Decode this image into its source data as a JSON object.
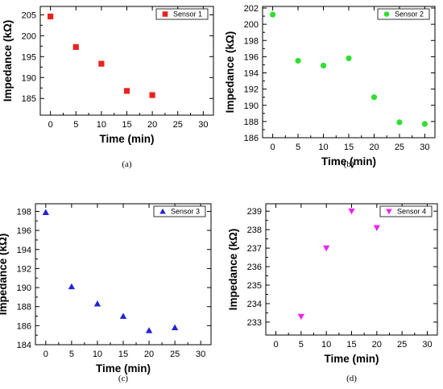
{
  "chart_data": [
    {
      "type": "scatter",
      "caption": "(a)",
      "xlabel": "Time (min)",
      "ylabel": "Impedance (kΩ)",
      "xlim": [
        -2,
        32
      ],
      "ylim": [
        181,
        207
      ],
      "xticks": [
        0,
        5,
        10,
        15,
        20,
        25,
        30
      ],
      "yticks": [
        185,
        190,
        195,
        200,
        205
      ],
      "grid": false,
      "legend": "top-right",
      "series": [
        {
          "name": "Sensor 1",
          "marker": "square",
          "color": "#e8231f",
          "x": [
            0,
            5,
            10,
            15,
            20
          ],
          "y": [
            204.6,
            197.3,
            193.3,
            186.8,
            185.8
          ]
        }
      ]
    },
    {
      "type": "scatter",
      "caption": "(b)",
      "xlabel": "Time (min)",
      "ylabel": "Impedance (kΩ)",
      "xlim": [
        -2,
        32
      ],
      "ylim": [
        186,
        202.2
      ],
      "xticks": [
        0,
        5,
        10,
        15,
        20,
        25,
        30
      ],
      "yticks": [
        186,
        188,
        190,
        192,
        194,
        196,
        198,
        200,
        202
      ],
      "grid": false,
      "legend": "top-right",
      "series": [
        {
          "name": "Sensor 2",
          "marker": "circle",
          "color": "#2fe02f",
          "x": [
            0,
            5,
            10,
            15,
            20,
            25,
            30
          ],
          "y": [
            201.2,
            195.5,
            194.9,
            195.8,
            191.0,
            187.9,
            187.7
          ]
        }
      ]
    },
    {
      "type": "scatter",
      "caption": "(c)",
      "xlabel": "Time (min)",
      "ylabel": "Impedance (kΩ)",
      "xlim": [
        -2,
        32
      ],
      "ylim": [
        184,
        198.8
      ],
      "xticks": [
        0,
        5,
        10,
        15,
        20,
        25,
        30
      ],
      "yticks": [
        184,
        186,
        188,
        190,
        192,
        194,
        196,
        198
      ],
      "grid": false,
      "legend": "top-right",
      "series": [
        {
          "name": "Sensor 3",
          "marker": "triangle-up",
          "color": "#1f23d8",
          "x": [
            0,
            5,
            10,
            15,
            20,
            25
          ],
          "y": [
            197.9,
            190.1,
            188.3,
            187.0,
            185.5,
            185.8
          ]
        }
      ]
    },
    {
      "type": "scatter",
      "caption": "(d)",
      "xlabel": "Time (min)",
      "ylabel": "Impedance (kΩ)",
      "xlim": [
        -2,
        32
      ],
      "ylim": [
        232.3,
        239.4
      ],
      "xticks": [
        0,
        5,
        10,
        15,
        20,
        25,
        30
      ],
      "yticks": [
        233,
        234,
        235,
        236,
        237,
        238,
        239
      ],
      "grid": false,
      "legend": "top-right",
      "series": [
        {
          "name": "Sensor 4",
          "marker": "triangle-down",
          "color": "#ee22ee",
          "x": [
            5,
            10,
            15,
            20
          ],
          "y": [
            233.3,
            237.0,
            239.0,
            238.1
          ]
        }
      ]
    }
  ]
}
